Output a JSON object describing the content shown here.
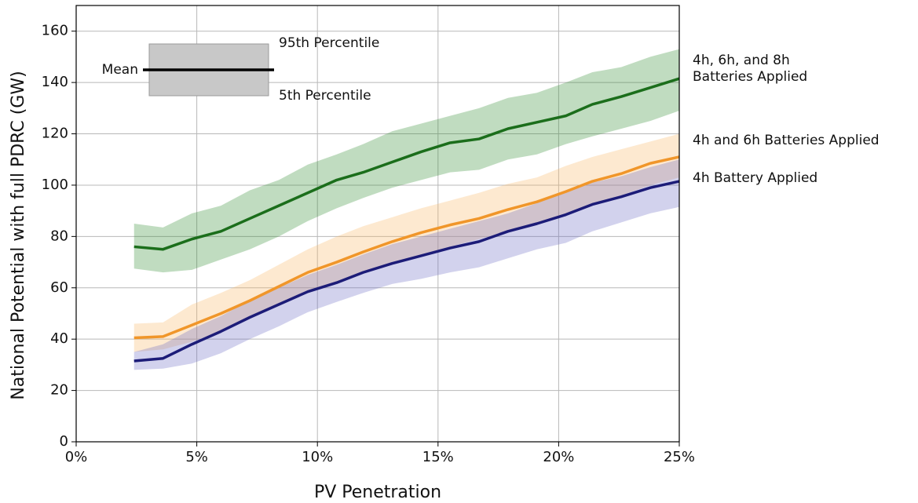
{
  "chart_data": {
    "type": "line",
    "x_label": "PV Penetration",
    "y_label": "National Potential with full PDRC (GW)",
    "xlim": [
      0,
      25
    ],
    "ylim": [
      0,
      170
    ],
    "xticks": [
      {
        "value": 0,
        "label": "0%"
      },
      {
        "value": 5,
        "label": "5%"
      },
      {
        "value": 10,
        "label": "10%"
      },
      {
        "value": 15,
        "label": "15%"
      },
      {
        "value": 20,
        "label": "20%"
      },
      {
        "value": 25,
        "label": "25%"
      }
    ],
    "yticks": [
      0,
      20,
      40,
      60,
      80,
      100,
      120,
      140,
      160
    ],
    "grid": true,
    "legend_key": {
      "mean_label": "Mean",
      "upper_label": "95th Percentile",
      "lower_label": "5th Percentile"
    },
    "x": [
      2.4,
      3.6,
      4.8,
      6.0,
      7.2,
      8.4,
      9.6,
      10.8,
      11.9,
      13.1,
      14.3,
      15.5,
      16.7,
      17.9,
      19.1,
      20.3,
      21.4,
      22.6,
      23.8,
      25.0
    ],
    "series": [
      {
        "name": "4h, 6h, and 8h\nBatteries Applied",
        "color": "#1b6e1b",
        "band_color": "#2e8b2e",
        "values": [
          76,
          75,
          79,
          82,
          87,
          92,
          97,
          102,
          105,
          109,
          113,
          116.5,
          118,
          122,
          124.5,
          127,
          131.5,
          134.5,
          138,
          141.5
        ],
        "upper": [
          85,
          83.5,
          89,
          92,
          98,
          102,
          108,
          112,
          116,
          121,
          124,
          127,
          130,
          134,
          136,
          140,
          144,
          146,
          150,
          153
        ],
        "lower": [
          67.5,
          66,
          67,
          71,
          75,
          80,
          86,
          91,
          95,
          99,
          102,
          105,
          106,
          110,
          112,
          116,
          119,
          122,
          125,
          129
        ]
      },
      {
        "name": "4h and 6h Batteries Applied",
        "color": "#f0962a",
        "band_color": "#f9b565",
        "values": [
          40.5,
          41,
          45.5,
          50,
          55,
          60.5,
          66,
          70,
          74,
          78,
          81.5,
          84.5,
          87,
          90.5,
          93.5,
          97.5,
          101.5,
          104.5,
          108.5,
          111
        ],
        "upper": [
          46,
          46.5,
          53.5,
          58,
          63,
          69,
          75,
          80,
          84,
          87.5,
          91,
          94,
          97,
          100.5,
          103,
          107.5,
          111,
          114,
          117,
          120
        ],
        "lower": [
          35,
          36,
          39,
          43,
          48,
          53,
          58,
          62,
          66,
          70,
          73,
          76,
          79,
          82,
          85,
          89,
          93,
          96,
          100,
          103
        ]
      },
      {
        "name": "4h Battery Applied",
        "color": "#1c1c78",
        "band_color": "#6a6ac4",
        "values": [
          31.5,
          32.5,
          38,
          43,
          48.5,
          53.5,
          58.5,
          62,
          66,
          69.5,
          72.5,
          75.5,
          78,
          82,
          85,
          88.5,
          92.5,
          95.5,
          99,
          101.5
        ],
        "upper": [
          35,
          38,
          44,
          49,
          55,
          60,
          65,
          69,
          73,
          77,
          80,
          83,
          86,
          89,
          93,
          97,
          101,
          103.5,
          107,
          110
        ],
        "lower": [
          28,
          28.5,
          30.5,
          34.5,
          40,
          45,
          50.5,
          54.5,
          58,
          61.5,
          63.5,
          66,
          68,
          71.5,
          75,
          77.5,
          82,
          85.5,
          89,
          91.5
        ]
      }
    ]
  }
}
